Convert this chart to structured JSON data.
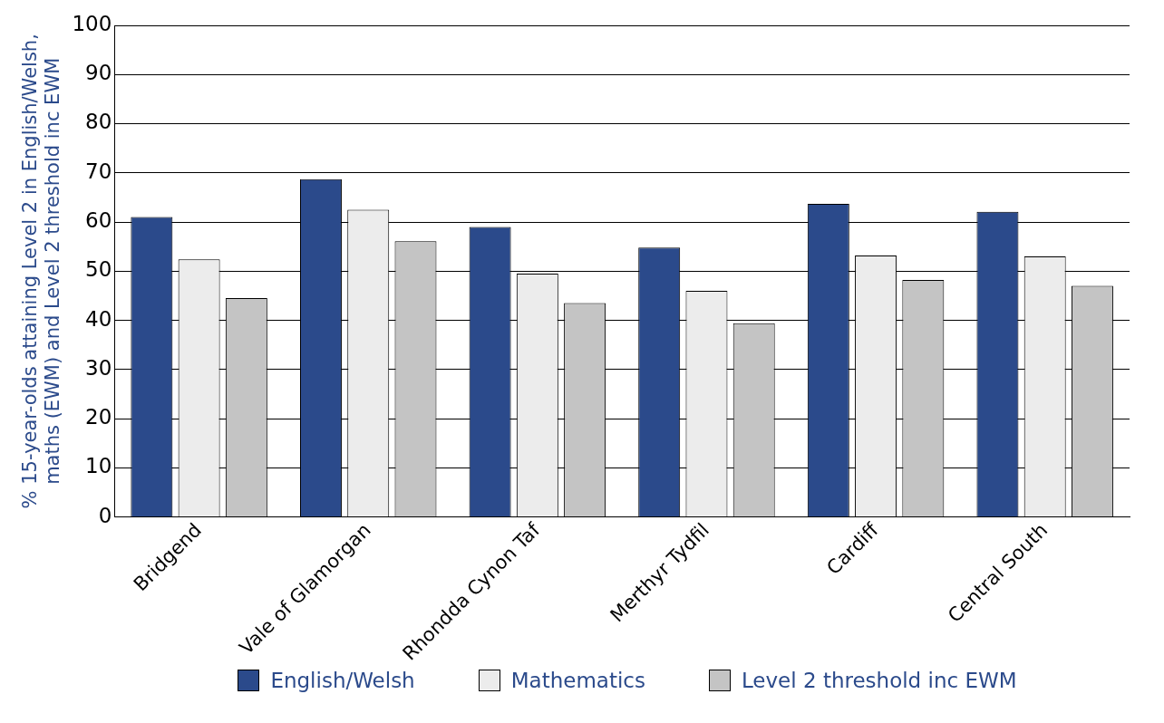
{
  "chart_data": {
    "type": "bar",
    "ylabel": "% 15-year-olds attaining Level 2 in English/Welsh, maths (EWM) and Level 2 threshold inc EWM",
    "categories": [
      "Bridgend",
      "Vale of Glamorgan",
      "Rhondda Cynon Taf",
      "Merthyr Tydfil",
      "Cardiff",
      "Central South"
    ],
    "series": [
      {
        "name": "English/Welsh",
        "color": "#2b4a8b",
        "values": [
          61,
          68.7,
          59,
          54.8,
          63.7,
          62.1
        ]
      },
      {
        "name": "Mathematics",
        "color": "#ececec",
        "values": [
          52.4,
          62.5,
          49.5,
          46,
          53.2,
          53
        ]
      },
      {
        "name": "Level 2 threshold inc EWM",
        "color": "#c4c4c4",
        "values": [
          44.5,
          56.1,
          43.5,
          39.4,
          48.2,
          47
        ]
      }
    ],
    "ylim": [
      0,
      100
    ],
    "yticks": [
      0,
      10,
      20,
      30,
      40,
      50,
      60,
      70,
      80,
      90,
      100
    ],
    "grid": "y",
    "legend": "bottom"
  }
}
